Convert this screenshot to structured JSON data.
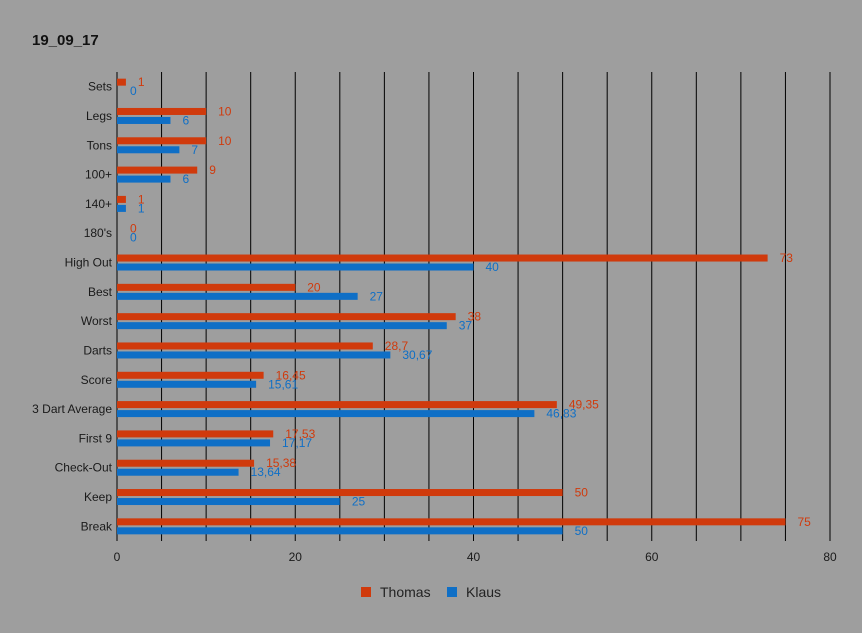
{
  "chart_data": {
    "type": "bar",
    "orientation": "horizontal",
    "title": "19_09_17",
    "categories": [
      "Sets",
      "Legs",
      "Tons",
      "100+",
      "140+",
      "180's",
      "High Out",
      "Best",
      "Worst",
      "Darts",
      "Score",
      "3 Dart Average",
      "First 9",
      "Check-Out",
      "Keep",
      "Break"
    ],
    "series": [
      {
        "name": "Thomas",
        "color": "#d03a0c",
        "values": [
          1,
          10,
          10,
          9,
          1,
          0,
          73,
          20,
          38,
          28.7,
          16.45,
          49.35,
          17.53,
          15.38,
          50,
          75
        ],
        "labels": [
          "1",
          "10",
          "10",
          "9",
          "1",
          "0",
          "73",
          "20",
          "38",
          "28,7",
          "16,45",
          "49,35",
          "17,53",
          "15,38",
          "50",
          "75"
        ]
      },
      {
        "name": "Klaus",
        "color": "#0f6fc6",
        "values": [
          0,
          6,
          7,
          6,
          1,
          0,
          40,
          27,
          37,
          30.67,
          15.61,
          46.83,
          17.17,
          13.64,
          25,
          50
        ],
        "labels": [
          "0",
          "6",
          "7",
          "6",
          "1",
          "0",
          "40",
          "27",
          "37",
          "30,67",
          "15,61",
          "46,83",
          "17,17",
          "13,64",
          "25",
          "50"
        ]
      }
    ],
    "xlim": [
      0,
      80
    ],
    "x_ticks": [
      "0",
      "20",
      "40",
      "60",
      "80"
    ],
    "grid": "vertical",
    "legend": "bottom"
  }
}
